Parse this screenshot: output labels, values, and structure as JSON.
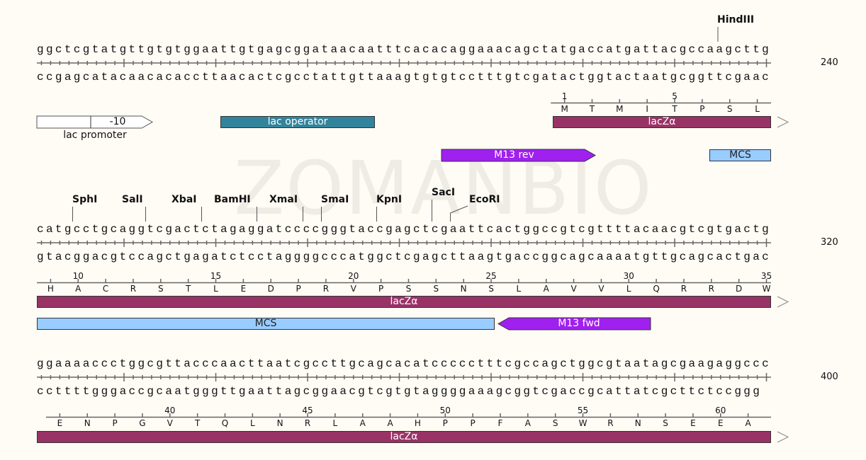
{
  "watermark": "ZOMANBIO",
  "colors": {
    "background": "#fffcf5",
    "lacZ": "#993366",
    "lac_operator": "#31849b",
    "primer": "#a020f0",
    "mcs": "#99ccff",
    "promoter": "#ffffff"
  },
  "rows": [
    {
      "top": "ggctcgtatgttgtgtggaattgtgagcggataacaatttcacacaggaaacagctatgaccatgattacgccaagcttg",
      "bottom": "ccgagcatacaacacaccttaacactcgcctattgttaaagtgtgtcctttgtcgatactggtactaatgcggttcgaac",
      "end_number": "240",
      "enzymes": [
        {
          "name": "HindIII"
        }
      ],
      "aa": {
        "letters": [
          "M",
          "T",
          "M",
          "I",
          "T",
          "P",
          "S",
          "L"
        ],
        "first_number": 1,
        "number_labels": [
          "1",
          "5"
        ]
      },
      "features": {
        "lac_promoter": {
          "label": "lac promoter",
          "segment_label": "-10"
        },
        "lac_operator": {
          "label": "lac operator"
        },
        "lacZ": {
          "label": "lacZα"
        },
        "m13_rev": {
          "label": "M13 rev"
        },
        "mcs": {
          "label": "MCS"
        }
      }
    },
    {
      "top": "catgcctgcaggtcgactctagaggatccccgggtaccgagctcgaattcactggccgtcgttttacaacgtcgtgactg",
      "bottom": "gtacggacgtccagctgagatctcctaggggcccatggctcgagcttaagtgaccggcagcaaaatgttgcagcactgac",
      "end_number": "320",
      "enzymes": [
        {
          "name": "SphI"
        },
        {
          "name": "SalI"
        },
        {
          "name": "XbaI"
        },
        {
          "name": "BamHI"
        },
        {
          "name": "XmaI"
        },
        {
          "name": "SmaI"
        },
        {
          "name": "KpnI"
        },
        {
          "name": "SacI"
        },
        {
          "name": "EcoRI"
        }
      ],
      "aa": {
        "letters": [
          "H",
          "A",
          "C",
          "R",
          "S",
          "T",
          "L",
          "E",
          "D",
          "P",
          "R",
          "V",
          "P",
          "S",
          "S",
          "N",
          "S",
          "L",
          "A",
          "V",
          "V",
          "L",
          "Q",
          "R",
          "R",
          "D",
          "W"
        ],
        "first_number": 9,
        "number_labels": [
          "10",
          "15",
          "20",
          "25",
          "30",
          "35"
        ]
      },
      "features": {
        "lacZ": {
          "label": "lacZα"
        },
        "mcs": {
          "label": "MCS"
        },
        "m13_fwd": {
          "label": "M13 fwd"
        }
      }
    },
    {
      "top": "ggaaaaccctggcgttacccaacttaatcgccttgcagcacatccccctttcgccagctggcgtaatagcgaagaggccc",
      "bottom": "ccttttgggaccgcaatgggttgaattagcggaacgtcgtgtaggggaaagcggtcgaccgcattatcgcttctccggg",
      "end_number": "400",
      "enzymes": [],
      "aa": {
        "letters": [
          "E",
          "N",
          "P",
          "G",
          "V",
          "T",
          "Q",
          "L",
          "N",
          "R",
          "L",
          "A",
          "A",
          "H",
          "P",
          "P",
          "F",
          "A",
          "S",
          "W",
          "R",
          "N",
          "S",
          "E",
          "E",
          "A"
        ],
        "first_number": 36,
        "number_labels": [
          "40",
          "45",
          "50",
          "55",
          "60"
        ]
      },
      "features": {
        "lacZ": {
          "label": "lacZα"
        }
      }
    }
  ]
}
